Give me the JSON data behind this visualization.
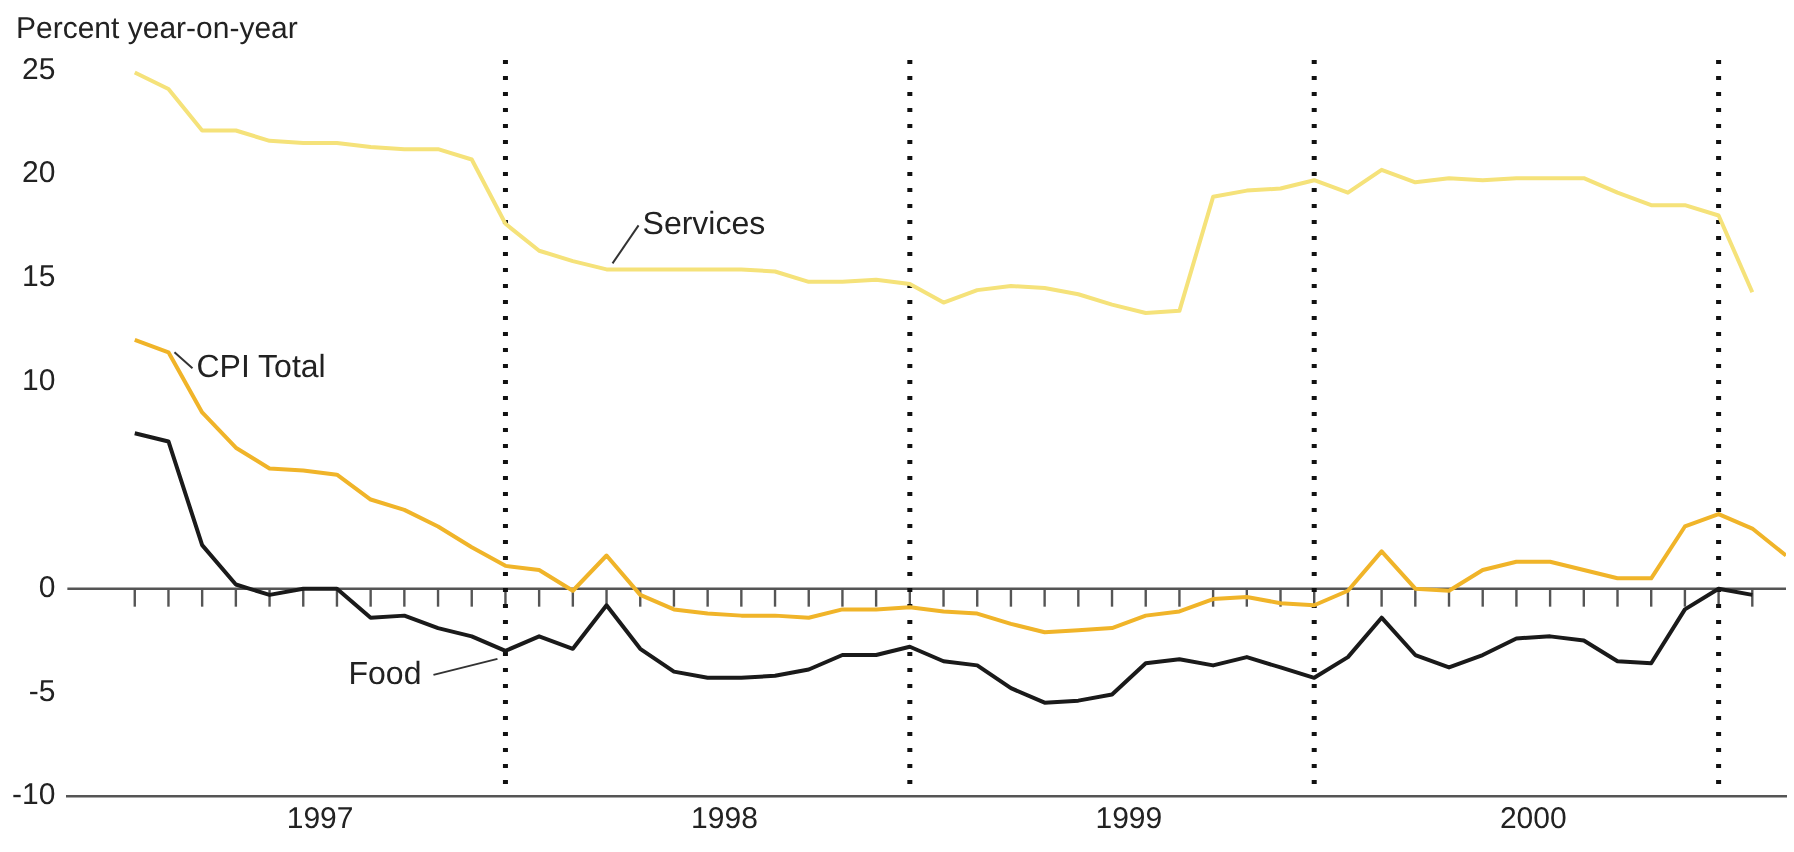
{
  "chart_data": {
    "type": "line",
    "ylabel": "Percent year-on-year",
    "x": [
      "1997-01",
      "1997-02",
      "1997-03",
      "1997-04",
      "1997-05",
      "1997-06",
      "1997-07",
      "1997-08",
      "1997-09",
      "1997-10",
      "1997-11",
      "1997-12",
      "1998-01",
      "1998-02",
      "1998-03",
      "1998-04",
      "1998-05",
      "1998-06",
      "1998-07",
      "1998-08",
      "1998-09",
      "1998-10",
      "1998-11",
      "1998-12",
      "1999-01",
      "1999-02",
      "1999-03",
      "1999-04",
      "1999-05",
      "1999-06",
      "1999-07",
      "1999-08",
      "1999-09",
      "1999-10",
      "1999-11",
      "1999-12",
      "2000-01",
      "2000-02",
      "2000-03",
      "2000-04",
      "2000-05",
      "2000-06",
      "2000-07",
      "2000-08",
      "2000-09",
      "2000-10",
      "2000-11",
      "2000-12",
      "2001-01",
      "2001-02"
    ],
    "series": [
      {
        "name": "Services",
        "color": "#f5e27a",
        "values": [
          24.9,
          24.1,
          22.1,
          22.1,
          21.6,
          21.5,
          21.5,
          21.3,
          21.2,
          21.2,
          20.7,
          17.6,
          16.3,
          15.8,
          15.4,
          15.4,
          15.4,
          15.4,
          15.4,
          15.3,
          14.8,
          14.8,
          14.9,
          14.7,
          13.8,
          14.4,
          14.6,
          14.5,
          14.2,
          13.7,
          13.3,
          13.4,
          18.9,
          19.2,
          19.3,
          19.7,
          19.1,
          20.2,
          19.6,
          19.8,
          19.7,
          19.8,
          19.8,
          19.8,
          19.1,
          18.5,
          18.5,
          18.0,
          14.3,
          null
        ]
      },
      {
        "name": "CPI Total",
        "color": "#f0b429",
        "values": [
          12.0,
          11.4,
          8.5,
          6.8,
          5.8,
          5.7,
          5.5,
          4.3,
          3.8,
          3.0,
          2.0,
          1.1,
          0.9,
          -0.1,
          1.6,
          -0.3,
          -1.0,
          -1.2,
          -1.3,
          -1.3,
          -1.4,
          -1.0,
          -1.0,
          -0.9,
          -1.1,
          -1.2,
          -1.7,
          -2.1,
          -2.0,
          -1.9,
          -1.3,
          -1.1,
          -0.5,
          -0.4,
          -0.7,
          -0.8,
          -0.1,
          1.8,
          0,
          -0.1,
          0.9,
          1.3,
          1.3,
          0.9,
          0.5,
          0.5,
          3.0,
          3.6,
          2.9,
          1.6
        ]
      },
      {
        "name": "Food",
        "color": "#1a1a1a",
        "values": [
          7.5,
          7.1,
          2.1,
          0.2,
          -0.3,
          0,
          0,
          -1.4,
          -1.3,
          -1.9,
          -2.3,
          -3.0,
          -2.3,
          -2.9,
          -0.8,
          -2.9,
          -4.0,
          -4.3,
          -4.3,
          -4.2,
          -3.9,
          -3.2,
          -3.2,
          -2.8,
          -3.5,
          -3.7,
          -4.8,
          -5.5,
          -5.4,
          -5.1,
          -3.6,
          -3.4,
          -3.7,
          -3.3,
          -3.8,
          -4.3,
          -3.3,
          -1.4,
          -3.2,
          -3.8,
          -3.2,
          -2.4,
          -2.3,
          -2.5,
          -3.5,
          -3.6,
          -1.0,
          0,
          -0.3,
          null
        ]
      }
    ],
    "ylim": [
      -10,
      25.5
    ],
    "yticks": [
      25,
      20,
      15,
      10,
      0,
      -5,
      -10
    ],
    "xlim": [
      "1996-11",
      "2001-02"
    ],
    "xticks": [
      {
        "value": "1997-06-16",
        "label": "1997"
      },
      {
        "value": "1998-06-16",
        "label": "1998"
      },
      {
        "value": "1999-06-16",
        "label": "1999"
      },
      {
        "value": "2000-06-16",
        "label": "2000"
      },
      {
        "value": "1997-01",
        "label": null
      },
      {
        "value": "1997-02",
        "label": null
      },
      {
        "value": "1997-03",
        "label": null
      },
      {
        "value": "1997-04",
        "label": null
      },
      {
        "value": "1997-05",
        "label": null
      },
      {
        "value": "1997-06",
        "label": null
      },
      {
        "value": "1997-07",
        "label": null
      },
      {
        "value": "1997-08",
        "label": null
      },
      {
        "value": "1997-09",
        "label": null
      },
      {
        "value": "1997-10",
        "label": null
      },
      {
        "value": "1997-11",
        "label": null
      },
      {
        "value": "1997-12",
        "label": null
      },
      {
        "value": "1998-01",
        "label": null
      },
      {
        "value": "1998-02",
        "label": null
      },
      {
        "value": "1998-03",
        "label": null
      },
      {
        "value": "1998-04",
        "label": null
      },
      {
        "value": "1998-05",
        "label": null
      },
      {
        "value": "1998-06",
        "label": null
      },
      {
        "value": "1998-07",
        "label": null
      },
      {
        "value": "1998-08",
        "label": null
      },
      {
        "value": "1998-09",
        "label": null
      },
      {
        "value": "1998-10",
        "label": null
      },
      {
        "value": "1998-11",
        "label": null
      },
      {
        "value": "1998-12",
        "label": null
      },
      {
        "value": "1999-01",
        "label": null
      },
      {
        "value": "1999-02",
        "label": null
      },
      {
        "value": "1999-03",
        "label": null
      },
      {
        "value": "1999-04",
        "label": null
      },
      {
        "value": "1999-05",
        "label": null
      },
      {
        "value": "1999-06",
        "label": null
      },
      {
        "value": "1999-07",
        "label": null
      },
      {
        "value": "1999-08",
        "label": null
      },
      {
        "value": "1999-09",
        "label": null
      },
      {
        "value": "1999-10",
        "label": null
      },
      {
        "value": "1999-11",
        "label": null
      },
      {
        "value": "1999-12",
        "label": null
      },
      {
        "value": "2000-01",
        "label": null
      },
      {
        "value": "2000-02",
        "label": null
      },
      {
        "value": "2000-03",
        "label": null
      },
      {
        "value": "2000-04",
        "label": null
      },
      {
        "value": "2000-05",
        "label": null
      },
      {
        "value": "2000-06",
        "label": null
      },
      {
        "value": "2000-07",
        "label": null
      },
      {
        "value": "2000-08",
        "label": null
      },
      {
        "value": "2000-09",
        "label": null
      },
      {
        "value": "2000-10",
        "label": null
      },
      {
        "value": "2000-11",
        "label": null
      },
      {
        "value": "2000-12",
        "label": null
      },
      {
        "value": "2001-01",
        "label": null
      }
    ],
    "ref_lines": [
      {
        "axis": "x",
        "value": "1997-12",
        "color": "#111111",
        "line_style": "dotted"
      },
      {
        "axis": "x",
        "value": "1998-12",
        "color": "#111111",
        "line_style": "dotted"
      },
      {
        "axis": "x",
        "value": "1999-12",
        "color": "#111111",
        "line_style": "dotted"
      },
      {
        "axis": "x",
        "value": "2000-12",
        "color": "#111111",
        "line_style": "dotted"
      }
    ],
    "grid": false,
    "legend": false,
    "marker": "none"
  }
}
